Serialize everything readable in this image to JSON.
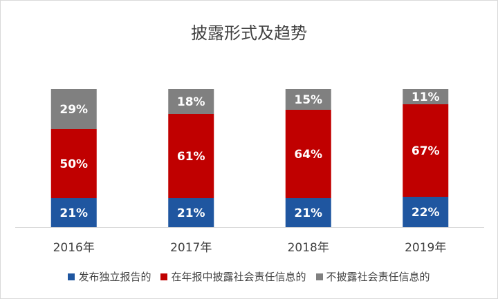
{
  "chart_data": {
    "type": "bar",
    "stacked": true,
    "title": "披露形式及趋势",
    "categories": [
      "2016年",
      "2017年",
      "2018年",
      "2019年"
    ],
    "series": [
      {
        "name": "发布独立报告的",
        "values": [
          21,
          21,
          21,
          22
        ],
        "labels": [
          "21%",
          "21%",
          "21%",
          "22%"
        ],
        "color": "#1f56a0"
      },
      {
        "name": "在年报中披露社会责任信息的",
        "values": [
          50,
          61,
          64,
          67
        ],
        "labels": [
          "50%",
          "61%",
          "64%",
          "67%"
        ],
        "color": "#c00000"
      },
      {
        "name": "不披露社会责任信息的",
        "values": [
          29,
          18,
          15,
          11
        ],
        "labels": [
          "29%",
          "18%",
          "15%",
          "11%"
        ],
        "color": "#808080"
      }
    ],
    "ylim": [
      0,
      100
    ],
    "grid": false,
    "legend_position": "bottom"
  }
}
